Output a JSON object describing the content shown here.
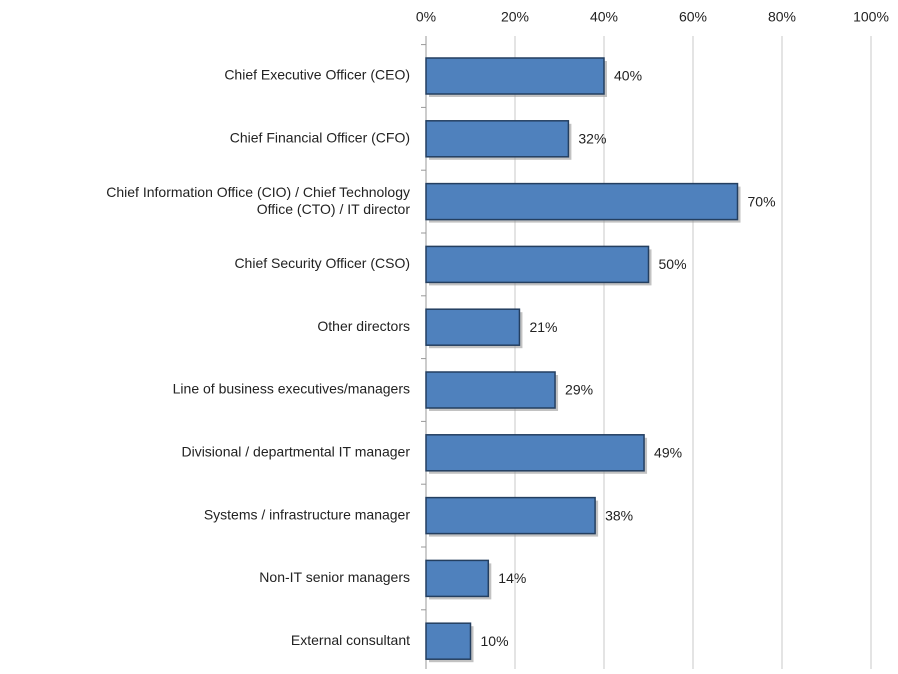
{
  "chart_data": {
    "type": "bar",
    "orientation": "horizontal",
    "categories": [
      "Chief Executive Officer (CEO)",
      "Chief Financial Officer (CFO)",
      "Chief Information Office (CIO) / Chief Technology\nOffice (CTO) / IT director",
      "Chief Security Officer (CSO)",
      "Other directors",
      "Line of business executives/managers",
      "Divisional / departmental IT manager",
      "Systems / infrastructure manager",
      "Non-IT senior managers",
      "External consultant"
    ],
    "values": [
      40,
      32,
      70,
      50,
      21,
      29,
      49,
      38,
      14,
      10
    ],
    "value_labels": [
      "40%",
      "32%",
      "70%",
      "50%",
      "21%",
      "29%",
      "49%",
      "38%",
      "14%",
      "10%"
    ],
    "color": "#4f81bd",
    "xlim": [
      0,
      100
    ],
    "xticks": [
      {
        "value": 0,
        "label": "0%"
      },
      {
        "value": 20,
        "label": "20%"
      },
      {
        "value": 40,
        "label": "40%"
      },
      {
        "value": 60,
        "label": "60%"
      },
      {
        "value": 80,
        "label": "80%"
      },
      {
        "value": 100,
        "label": "100%"
      }
    ],
    "grid": true
  }
}
